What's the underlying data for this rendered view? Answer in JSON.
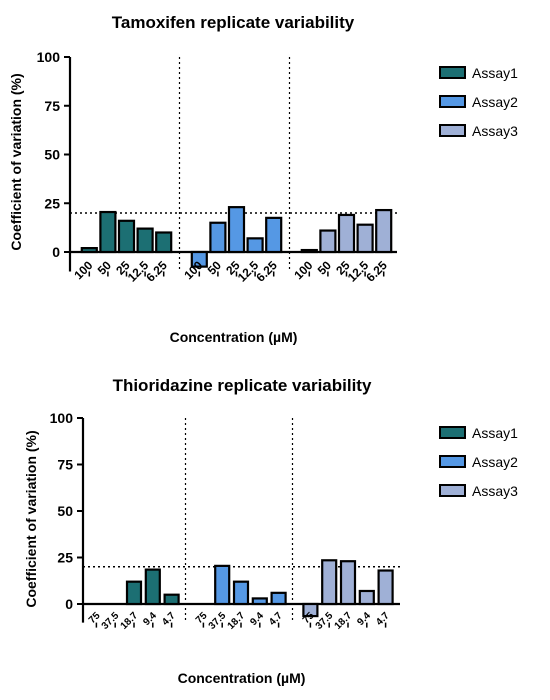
{
  "colors": {
    "Assay1": "#1c6f73",
    "Assay2": "#5598e4",
    "Assay3": "#9fb0d6",
    "outline": "#000000"
  },
  "chart_data": [
    {
      "type": "bar",
      "title": "Tamoxifen replicate variability",
      "xlabel": "Concentration (µM)",
      "ylabel": "Coefficient of variation (%)",
      "ylim": [
        -10,
        100
      ],
      "yticks": [
        0,
        25,
        50,
        75,
        100
      ],
      "threshold": 20,
      "legend_placement": "right",
      "groups": [
        "Assay1",
        "Assay2",
        "Assay3"
      ],
      "categories": [
        "100",
        "50",
        "25",
        "12.5",
        "6.25"
      ],
      "series": [
        {
          "name": "Assay1",
          "values": [
            2,
            20.5,
            16,
            12,
            10
          ]
        },
        {
          "name": "Assay2",
          "values": [
            -7.5,
            15,
            23,
            7,
            17.5
          ]
        },
        {
          "name": "Assay3",
          "values": [
            1,
            11,
            19,
            14,
            21.5
          ]
        }
      ]
    },
    {
      "type": "bar",
      "title": "Thioridazine replicate variability",
      "xlabel": "Concentration (µM)",
      "ylabel": "Coefficient of variation (%)",
      "ylim": [
        -10,
        100
      ],
      "yticks": [
        0,
        25,
        50,
        75,
        100
      ],
      "threshold": 20,
      "legend_placement": "right",
      "groups": [
        "Assay1",
        "Assay2",
        "Assay3"
      ],
      "categories": [
        "75",
        "37.5",
        "18.7",
        "9.4",
        "4.7"
      ],
      "series": [
        {
          "name": "Assay1",
          "values": [
            0,
            0,
            12,
            18.5,
            5
          ]
        },
        {
          "name": "Assay2",
          "values": [
            0,
            20.5,
            12,
            3,
            6
          ]
        },
        {
          "name": "Assay3",
          "values": [
            -6.5,
            23.5,
            23,
            7,
            18
          ]
        }
      ]
    }
  ]
}
